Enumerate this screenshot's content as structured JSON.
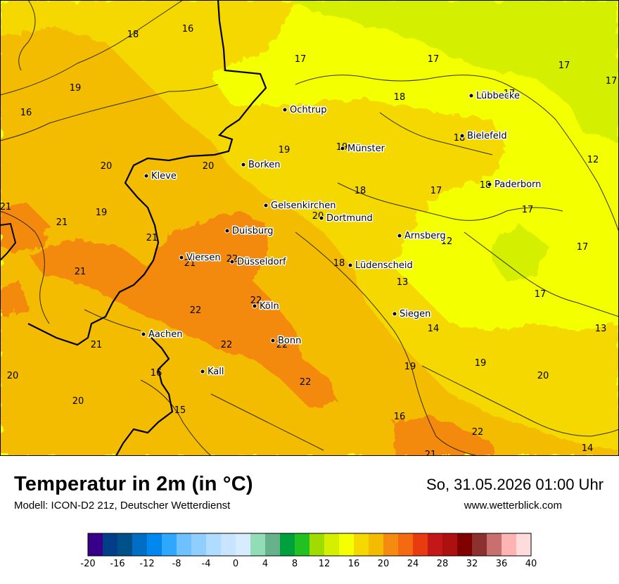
{
  "title": "Temperatur in 2m (in °C)",
  "model": "Modell: ICON-D2 21z, Deutscher Wetterdienst",
  "datetime": "So, 31.05.2026 01:00 Uhr",
  "website": "www.wetterblick.com",
  "cities": [
    {
      "name": "Lübbecke"
    },
    {
      "name": "Ochtrup"
    },
    {
      "name": "Bielefeld"
    },
    {
      "name": "Münster"
    },
    {
      "name": "Kleve"
    },
    {
      "name": "Borken"
    },
    {
      "name": "Paderborn"
    },
    {
      "name": "Gelsenkirchen"
    },
    {
      "name": "Dortmund"
    },
    {
      "name": "Duisburg"
    },
    {
      "name": "Arnsberg"
    },
    {
      "name": "Viersen"
    },
    {
      "name": "Düsseldorf"
    },
    {
      "name": "Lüdenscheid"
    },
    {
      "name": "Köln"
    },
    {
      "name": "Siegen"
    },
    {
      "name": "Aachen"
    },
    {
      "name": "Bonn"
    },
    {
      "name": "Kall"
    }
  ],
  "temperature_labels": [
    "18",
    "16",
    "17",
    "17",
    "17",
    "17",
    "19",
    "18",
    "16",
    "17",
    "18",
    "19",
    "20",
    "20",
    "19",
    "12",
    "18",
    "17",
    "18",
    "21",
    "19",
    "17",
    "21",
    "20",
    "21",
    "12",
    "17",
    "21",
    "22",
    "18",
    "13",
    "21",
    "22",
    "17",
    "22",
    "14",
    "13",
    "21",
    "22",
    "22",
    "19",
    "19",
    "20",
    "16",
    "20",
    "22",
    "20",
    "15",
    "16",
    "22",
    "14",
    "21"
  ],
  "legend": {
    "colors": [
      "#380088",
      "#003f88",
      "#00508a",
      "#006ec4",
      "#0088ee",
      "#2ea8ff",
      "#6ec0ff",
      "#90ceff",
      "#b0dcff",
      "#c8e4ff",
      "#d8ecff",
      "#92dcb6",
      "#66b28c",
      "#00a03c",
      "#22c020",
      "#a0dc00",
      "#d4f000",
      "#f4ff00",
      "#f4d800",
      "#f4bc00",
      "#f48a10",
      "#f46a10",
      "#e83c10",
      "#c41818",
      "#ac1010",
      "#800000",
      "#8c3030",
      "#c87070",
      "#ffb4b4",
      "#ffdcdc"
    ],
    "ticks": [
      "-20",
      "-16",
      "-12",
      "-8",
      "-4",
      "0",
      "4",
      "8",
      "12",
      "16",
      "20",
      "24",
      "28",
      "32",
      "36",
      "40"
    ]
  }
}
